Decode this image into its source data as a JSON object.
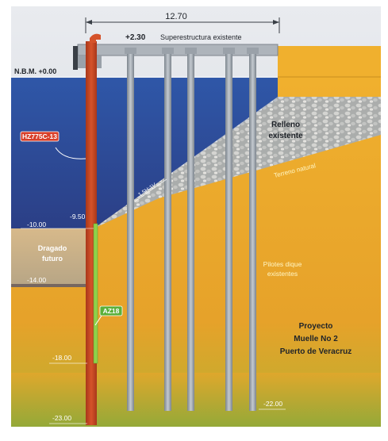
{
  "diagram": {
    "top_dimension": "12.70",
    "superstructure_level": "+2.30",
    "superstructure_label": "Superestructura existente",
    "water_level_label": "N.B.M. +0.00",
    "fill_label_line1": "Relleno",
    "fill_label_line2": "existente",
    "slope_label": "1.5H:1V",
    "natural_terrain_label": "Terreno natural",
    "sheet_pile_label": "HZ775C-13",
    "level_minus_9_50": "-9.50",
    "level_minus_10_00": "-10.00",
    "dredge_label_line1": "Dragado",
    "dredge_label_line2": "futuro",
    "level_minus_14_00": "-14.00",
    "existing_piles_line1": "Pilotes dique",
    "existing_piles_line2": "existentes",
    "az_label": "AZ18",
    "project_line1": "Proyecto",
    "project_line2": "Muelle No 2",
    "project_line3": "Puerto de Veracruz",
    "level_minus_18_00": "-18.00",
    "level_minus_22_00": "-22.00",
    "level_minus_23_00": "-23.00"
  },
  "colors": {
    "sheet_pile": "#c9461e",
    "az_pile": "#8fd24a",
    "water": "#2d4f9c",
    "soil": "#e9a62a",
    "piles": "#9aa2ab"
  }
}
